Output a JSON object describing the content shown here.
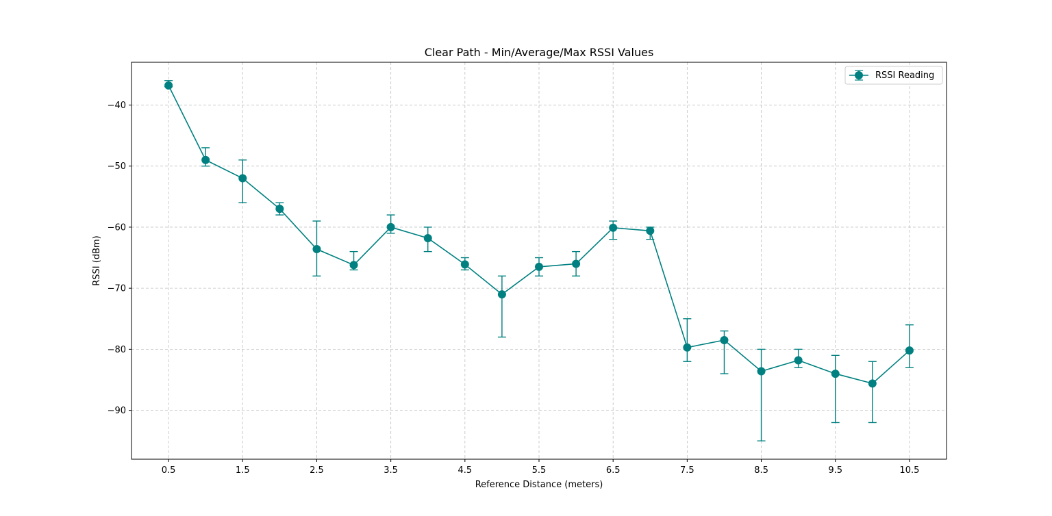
{
  "chart_data": {
    "type": "line",
    "title": "Clear Path - Min/Average/Max RSSI Values",
    "xlabel": "Reference Distance (meters)",
    "ylabel": "RSSI (dBm)",
    "xlim": [
      0.0,
      11.0
    ],
    "ylim": [
      -98.0,
      -33.0
    ],
    "xticks": [
      0.5,
      1.5,
      2.5,
      3.5,
      4.5,
      5.5,
      6.5,
      7.5,
      8.5,
      9.5,
      10.5
    ],
    "xtick_labels": [
      "0.5",
      "1.5",
      "2.5",
      "3.5",
      "4.5",
      "5.5",
      "6.5",
      "7.5",
      "8.5",
      "9.5",
      "10.5"
    ],
    "yticks": [
      -40,
      -50,
      -60,
      -70,
      -80,
      -90
    ],
    "ytick_labels": [
      "−40",
      "−50",
      "−60",
      "−70",
      "−80",
      "−90"
    ],
    "grid": true,
    "legend_position": "top-right",
    "series": [
      {
        "name": "RSSI Reading",
        "color": "#008080",
        "x": [
          0.5,
          1.0,
          1.5,
          2.0,
          2.5,
          3.0,
          3.5,
          4.0,
          4.5,
          5.0,
          5.5,
          6.0,
          6.5,
          7.0,
          7.5,
          8.0,
          8.5,
          9.0,
          9.5,
          10.0,
          10.5
        ],
        "y": [
          -36.8,
          -49.0,
          -52.0,
          -57.0,
          -63.6,
          -66.2,
          -60.0,
          -61.8,
          -66.1,
          -71.0,
          -66.5,
          -66.0,
          -60.1,
          -60.6,
          -79.7,
          -78.5,
          -83.6,
          -81.8,
          -84.0,
          -85.6,
          -80.2
        ],
        "min": [
          -37.0,
          -50.0,
          -56.0,
          -58.0,
          -68.0,
          -67.0,
          -61.0,
          -64.0,
          -67.0,
          -78.0,
          -68.0,
          -68.0,
          -62.0,
          -62.0,
          -82.0,
          -84.0,
          -95.0,
          -83.0,
          -92.0,
          -92.0,
          -83.0
        ],
        "max": [
          -36.0,
          -47.0,
          -49.0,
          -56.0,
          -59.0,
          -64.0,
          -58.0,
          -60.0,
          -65.0,
          -68.0,
          -65.0,
          -64.0,
          -59.0,
          -60.0,
          -75.0,
          -77.0,
          -80.0,
          -80.0,
          -81.0,
          -82.0,
          -76.0
        ]
      }
    ]
  }
}
